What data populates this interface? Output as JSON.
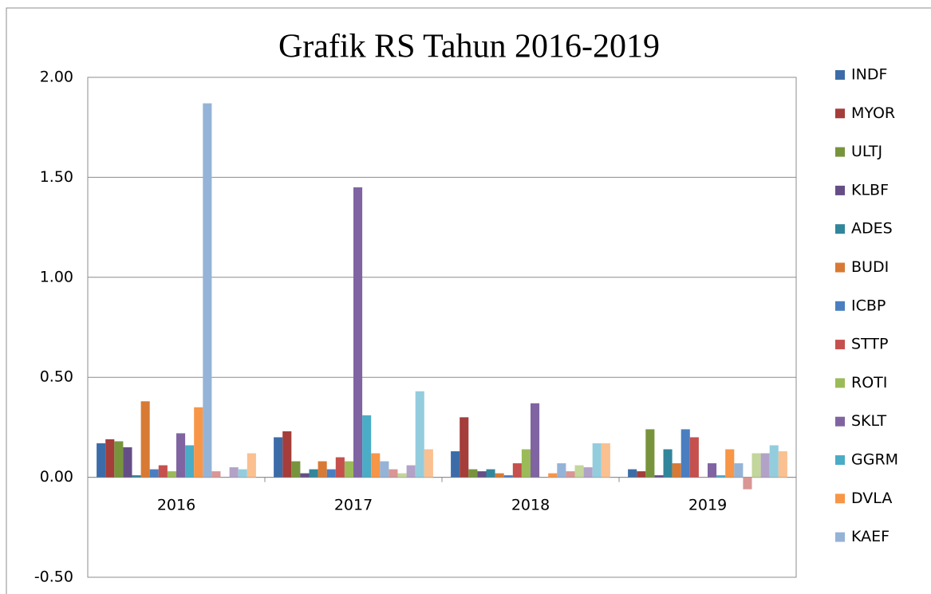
{
  "chart_data": {
    "type": "bar",
    "title": "Grafik RS Tahun 2016-2019",
    "categories": [
      "2016",
      "2017",
      "2018",
      "2019"
    ],
    "ylim": [
      -0.5,
      2.0
    ],
    "yticks": [
      {
        "value": -0.5,
        "label": "-0.50"
      },
      {
        "value": 0,
        "label": "0.00"
      },
      {
        "value": 0.5,
        "label": "0.50"
      },
      {
        "value": 1,
        "label": "1.00"
      },
      {
        "value": 1.5,
        "label": "1.50"
      },
      {
        "value": 2,
        "label": "2.00"
      }
    ],
    "grid": true,
    "legend": "right",
    "series": [
      {
        "name": "INDF",
        "color": "#3c6ca8",
        "values": [
          0.17,
          0.2,
          0.13,
          0.04
        ]
      },
      {
        "name": "MYOR",
        "color": "#a53d3a",
        "values": [
          0.19,
          0.23,
          0.3,
          0.03
        ]
      },
      {
        "name": "ULTJ",
        "color": "#77943d",
        "values": [
          0.18,
          0.08,
          0.04,
          0.24
        ]
      },
      {
        "name": "KLBF",
        "color": "#654e86",
        "values": [
          0.15,
          0.02,
          0.03,
          0.01
        ]
      },
      {
        "name": "ADES",
        "color": "#31869b",
        "values": [
          0.01,
          0.04,
          0.04,
          0.14
        ]
      },
      {
        "name": "BUDI",
        "color": "#d87a34",
        "values": [
          0.38,
          0.08,
          0.02,
          0.07
        ]
      },
      {
        "name": "ICBP",
        "color": "#4a7ec0",
        "values": [
          0.04,
          0.04,
          0.01,
          0.24
        ]
      },
      {
        "name": "STTP",
        "color": "#c5504d",
        "values": [
          0.06,
          0.1,
          0.07,
          0.2
        ]
      },
      {
        "name": "ROTI",
        "color": "#9bbb59",
        "values": [
          0.03,
          0.08,
          0.14,
          0.0
        ]
      },
      {
        "name": "SKLT",
        "color": "#8064a2",
        "values": [
          0.22,
          1.45,
          0.37,
          0.07
        ]
      },
      {
        "name": "GGRM",
        "color": "#4bacc6",
        "values": [
          0.16,
          0.31,
          0.0,
          0.01
        ]
      },
      {
        "name": "DVLA",
        "color": "#f79646",
        "values": [
          0.35,
          0.12,
          0.02,
          0.14
        ]
      },
      {
        "name": "KAEF",
        "color": "#95b3d7",
        "values": [
          1.87,
          0.08,
          0.07,
          0.07
        ]
      },
      {
        "color": "#d99694",
        "values": [
          0.03,
          0.04,
          0.03,
          -0.06
        ]
      },
      {
        "color": "#c3d69b",
        "values": [
          0.0,
          0.02,
          0.06,
          0.12
        ]
      },
      {
        "color": "#b3a2c7",
        "values": [
          0.05,
          0.06,
          0.05,
          0.12
        ]
      },
      {
        "color": "#93cddd",
        "values": [
          0.04,
          0.43,
          0.17,
          0.16
        ]
      },
      {
        "color": "#fac090",
        "values": [
          0.12,
          0.14,
          0.17,
          0.13
        ]
      }
    ]
  }
}
